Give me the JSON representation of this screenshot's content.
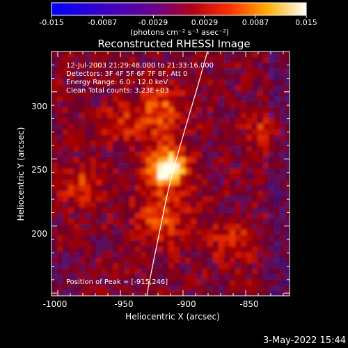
{
  "colorbar": {
    "ticks": [
      "-0.015",
      "-0.0087",
      "-0.0029",
      "0.0029",
      "0.0087",
      "0.015"
    ],
    "units": "(photons cm⁻² s⁻¹ asec⁻²)"
  },
  "plot": {
    "title": "Reconstructed RHESSI Image",
    "info": [
      "12-Jul-2003 21:29:48.000 to 21:33:16.000",
      "Detectors: 3F 4F 5F 6F 7F 8F, Att 0",
      "Energy Range: 6.0 - 12.0 keV",
      "Clean     Total counts: 3.23E+03"
    ],
    "peak_label": "Position of Peak = [-915,246]",
    "xlabel": "Heliocentric X (arcsec)",
    "ylabel": "Heliocentric Y (arcsec)",
    "xticks": [
      "-1000",
      "-950",
      "-900",
      "-850"
    ],
    "yticks": [
      "300",
      "250",
      "200"
    ]
  },
  "footer": {
    "date": "3-May-2022 15:44"
  },
  "chart_data": {
    "type": "heatmap",
    "title": "Reconstructed RHESSI Image",
    "xlabel": "Heliocentric X (arcsec)",
    "ylabel": "Heliocentric Y (arcsec)",
    "xlim": [
      -1005,
      -815
    ],
    "ylim": [
      148,
      330
    ],
    "peak": {
      "x": -915,
      "y": 246
    },
    "color_range": [
      -0.015,
      0.015
    ],
    "colormap": "blue-purple-red-yellow-white"
  },
  "colors": {
    "background": "#000000",
    "text": "#ffffff"
  }
}
